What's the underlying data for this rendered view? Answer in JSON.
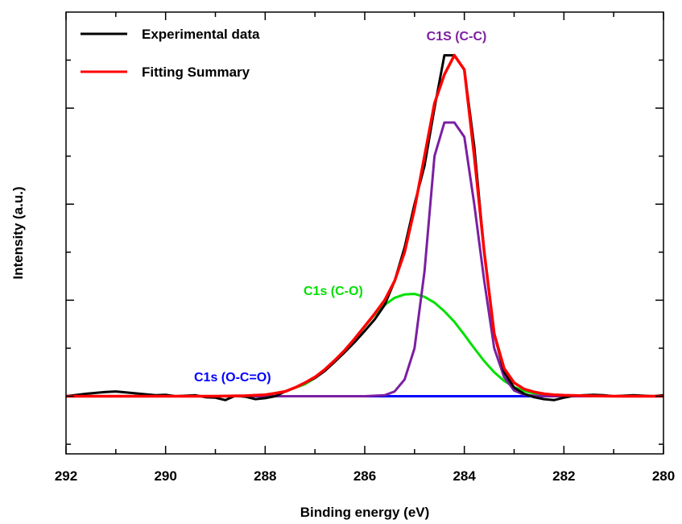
{
  "chart_data": {
    "type": "line",
    "title": "",
    "xlabel": "Binding energy (eV)",
    "ylabel": "Intensity (a.u.)",
    "xlim": [
      292,
      280
    ],
    "ylim": [
      -0.12,
      0.8
    ],
    "x_reversed": true,
    "y_tick_labels_shown": false,
    "x_ticks": [
      292,
      290,
      288,
      286,
      284,
      282,
      280
    ],
    "x_tick_labels": [
      "292",
      "290",
      "288",
      "286",
      "284",
      "282",
      "280"
    ],
    "grid": false,
    "legend_position": "top-left",
    "legend": [
      "Experimental data",
      "Fitting Summary"
    ],
    "series": [
      {
        "name": "Experimental data",
        "color": "#000000",
        "x": [
          292,
          291.6,
          291.2,
          291,
          290.8,
          290.4,
          290.2,
          290,
          289.8,
          289.4,
          289.2,
          289,
          288.8,
          288.6,
          288.4,
          288.2,
          288,
          287.8,
          287.6,
          287.4,
          287.2,
          287,
          286.8,
          286.6,
          286.4,
          286.2,
          286,
          285.8,
          285.6,
          285.4,
          285.2,
          285,
          284.8,
          284.6,
          284.4,
          284.2,
          284,
          283.8,
          283.6,
          283.4,
          283.2,
          283,
          282.8,
          282.6,
          282.4,
          282.2,
          282,
          281.8,
          281.6,
          281.4,
          281.2,
          281,
          280.8,
          280.6,
          280.4,
          280.2,
          280
        ],
        "y": [
          0,
          0.005,
          0.009,
          0.01,
          0.008,
          0.004,
          0.002,
          0.003,
          0,
          0.002,
          -0.002,
          -0.003,
          -0.008,
          0.001,
          -0.001,
          -0.006,
          -0.004,
          0,
          0.01,
          0.018,
          0.028,
          0.038,
          0.053,
          0.072,
          0.092,
          0.113,
          0.136,
          0.16,
          0.19,
          0.24,
          0.31,
          0.4,
          0.48,
          0.6,
          0.71,
          0.71,
          0.68,
          0.52,
          0.3,
          0.13,
          0.05,
          0.018,
          0.005,
          -0.002,
          -0.006,
          -0.008,
          -0.003,
          0.001,
          0.002,
          0.003,
          0.002,
          0,
          0.001,
          0.002,
          0.001,
          0,
          0.002
        ]
      },
      {
        "name": "Fitting Summary",
        "color": "#ff0000",
        "x": [
          292,
          290,
          289,
          288.4,
          288,
          287.8,
          287.6,
          287.4,
          287.2,
          287,
          286.8,
          286.6,
          286.4,
          286.2,
          286,
          285.8,
          285.6,
          285.4,
          285.2,
          285,
          284.8,
          284.6,
          284.4,
          284.2,
          284,
          283.8,
          283.6,
          283.4,
          283.2,
          283,
          282.8,
          282.6,
          282.4,
          282.2,
          282,
          281.6,
          281,
          280
        ],
        "y": [
          0,
          0,
          0,
          0.001,
          0.003,
          0.006,
          0.01,
          0.018,
          0.028,
          0.04,
          0.056,
          0.075,
          0.096,
          0.12,
          0.146,
          0.172,
          0.2,
          0.24,
          0.3,
          0.39,
          0.5,
          0.61,
          0.67,
          0.71,
          0.68,
          0.5,
          0.3,
          0.13,
          0.058,
          0.028,
          0.015,
          0.009,
          0.005,
          0.003,
          0.002,
          0.001,
          0,
          0
        ]
      },
      {
        "name": "C1S (C-C)",
        "color": "#7b1fa2",
        "x": [
          292,
          286,
          285.6,
          285.4,
          285.2,
          285,
          284.8,
          284.6,
          284.4,
          284.2,
          284,
          283.8,
          283.6,
          283.4,
          283.2,
          283,
          282.8,
          282.6,
          282.4,
          280
        ],
        "y": [
          0,
          0,
          0.002,
          0.01,
          0.035,
          0.1,
          0.26,
          0.5,
          0.57,
          0.57,
          0.54,
          0.4,
          0.24,
          0.1,
          0.04,
          0.012,
          0.003,
          0.001,
          0,
          0
        ]
      },
      {
        "name": "C1s (C-O)",
        "color": "#00e000",
        "x": [
          292,
          290,
          289,
          288.4,
          288,
          287.6,
          287.2,
          287,
          286.8,
          286.6,
          286.4,
          286.2,
          286,
          285.8,
          285.6,
          285.4,
          285.2,
          285,
          284.8,
          284.6,
          284.4,
          284.2,
          284,
          283.8,
          283.6,
          283.4,
          283.2,
          283,
          282.8,
          282.6,
          282.4,
          282,
          281.6,
          281,
          280
        ],
        "y": [
          0,
          0,
          0,
          0.001,
          0.003,
          0.01,
          0.025,
          0.038,
          0.054,
          0.073,
          0.095,
          0.12,
          0.145,
          0.17,
          0.19,
          0.205,
          0.212,
          0.213,
          0.207,
          0.195,
          0.177,
          0.155,
          0.128,
          0.1,
          0.073,
          0.05,
          0.032,
          0.019,
          0.011,
          0.006,
          0.003,
          0.001,
          0,
          0,
          0
        ]
      },
      {
        "name": "C1s (O-C=O)",
        "color": "#0000ff",
        "x": [
          292,
          280
        ],
        "y": [
          0,
          0
        ]
      }
    ],
    "annotations": [
      {
        "text": "C1S (C-C)",
        "color": "#7b1fa2"
      },
      {
        "text": "C1s (C-O)",
        "color": "#00e000"
      },
      {
        "text": "C1s (O-C=O)",
        "color": "#0000ff"
      }
    ]
  }
}
